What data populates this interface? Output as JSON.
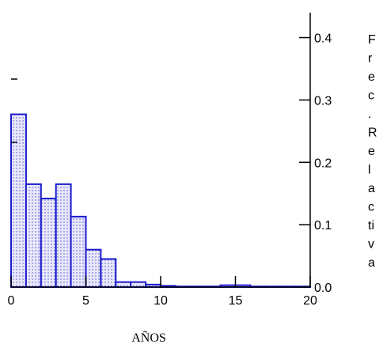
{
  "chart_data": {
    "type": "bar",
    "xlabel": "AÑOS",
    "ylabel": "Frec.Relativa",
    "ylabel_chars": [
      "F",
      "r",
      "e",
      "c",
      ".",
      "R",
      "e",
      "l",
      "a",
      "c",
      "ti",
      "v",
      "a"
    ],
    "xlim": [
      0,
      20
    ],
    "ylim": [
      0,
      0.44
    ],
    "y_axis_side": "right",
    "grid": false,
    "x_ticks": [
      0,
      5,
      10,
      15,
      20
    ],
    "x_tick_labels": [
      "0",
      "5",
      "10",
      "15",
      "20"
    ],
    "y_ticks": [
      0.0,
      0.1,
      0.2,
      0.3,
      0.4
    ],
    "y_tick_labels": [
      "0.0",
      "0.1",
      "0.2",
      "0.3",
      "0.4"
    ],
    "bin_width": 1,
    "bins": [
      {
        "x0": 0,
        "x1": 1,
        "value": 0.277
      },
      {
        "x0": 1,
        "x1": 2,
        "value": 0.165
      },
      {
        "x0": 2,
        "x1": 3,
        "value": 0.142
      },
      {
        "x0": 3,
        "x1": 4,
        "value": 0.165
      },
      {
        "x0": 4,
        "x1": 5,
        "value": 0.113
      },
      {
        "x0": 5,
        "x1": 6,
        "value": 0.06
      },
      {
        "x0": 6,
        "x1": 7,
        "value": 0.045
      },
      {
        "x0": 7,
        "x1": 8,
        "value": 0.008
      },
      {
        "x0": 8,
        "x1": 9,
        "value": 0.008
      },
      {
        "x0": 9,
        "x1": 10,
        "value": 0.004
      },
      {
        "x0": 10,
        "x1": 11,
        "value": 0.002
      },
      {
        "x0": 11,
        "x1": 12,
        "value": 0.001
      },
      {
        "x0": 12,
        "x1": 13,
        "value": 0.001
      },
      {
        "x0": 13,
        "x1": 14,
        "value": 0.001
      },
      {
        "x0": 14,
        "x1": 15,
        "value": 0.003
      },
      {
        "x0": 15,
        "x1": 16,
        "value": 0.003
      },
      {
        "x0": 16,
        "x1": 17,
        "value": 0.001
      },
      {
        "x0": 17,
        "x1": 18,
        "value": 0.001
      },
      {
        "x0": 18,
        "x1": 19,
        "value": 0.001
      },
      {
        "x0": 19,
        "x1": 20,
        "value": 0.001
      }
    ],
    "colors": {
      "bar_stroke": "#1a1acc",
      "bar_dots": "#4a4ad8",
      "bar_fill_bg": "#e8e8fa",
      "axis": "#000000"
    }
  }
}
